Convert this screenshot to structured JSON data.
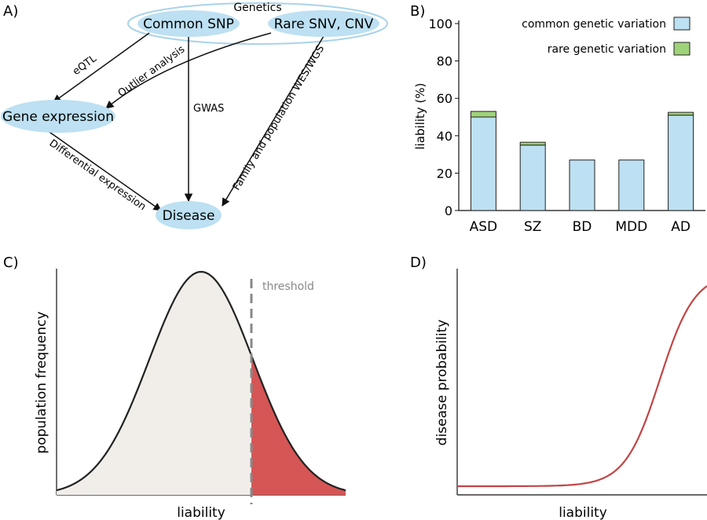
{
  "panel_a": {
    "label": "A)",
    "genetics_label": "Genetics",
    "nodes": {
      "common_snp": "Common SNP",
      "rare_snv_cnv": "Rare SNV, CNV",
      "gene_expression": "Gene expression",
      "disease": "Disease"
    },
    "edges": {
      "eqtl": "eQTL",
      "outlier": "Outlier analysis",
      "gwas": "GWAS",
      "family": "Family and population WES/WGS",
      "differential": "Differential expression"
    },
    "colors": {
      "node_fill": "#bde0f2",
      "genetics_ring": "#a9d3ea"
    }
  },
  "panel_b": {
    "label": "B)",
    "chart_data": {
      "type": "bar",
      "stacked": true,
      "categories": [
        "ASD",
        "SZ",
        "BD",
        "MDD",
        "AD"
      ],
      "series": [
        {
          "name": "common genetic variation",
          "values": [
            50,
            35,
            27,
            27,
            51
          ],
          "color": "#bde0f2"
        },
        {
          "name": "rare genetic variation",
          "values": [
            3,
            1.5,
            0,
            0,
            1.5
          ],
          "color": "#9fd37a"
        }
      ],
      "ylabel": "liability (%)",
      "ylim": [
        0,
        100
      ],
      "yticks": [
        "0",
        "20",
        "40",
        "60",
        "80",
        "100"
      ],
      "legend": "top-right",
      "grid": false
    }
  },
  "panel_c": {
    "label": "C)",
    "xlabel": "liability",
    "ylabel": "population frequency",
    "threshold_label": "threshold",
    "colors": {
      "body_fill": "#f1eeea",
      "tail_fill": "#d65555",
      "line": "#222222",
      "threshold": "#888888"
    }
  },
  "panel_d": {
    "label": "D)",
    "xlabel": "liability",
    "ylabel": "disease probability",
    "colors": {
      "curve": "#c24545"
    }
  }
}
